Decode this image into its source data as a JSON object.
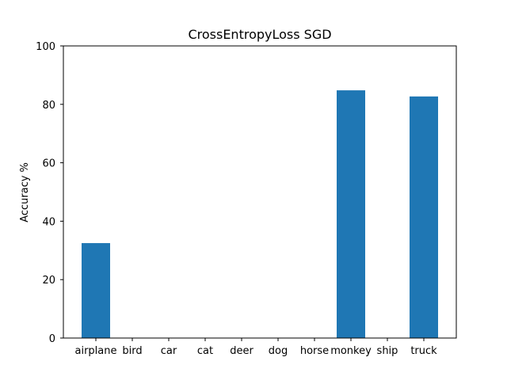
{
  "chart_data": {
    "type": "bar",
    "title": "CrossEntropyLoss SGD",
    "xlabel": "",
    "ylabel": "Accuracy %",
    "categories": [
      "airplane",
      "bird",
      "car",
      "cat",
      "deer",
      "dog",
      "horse",
      "monkey",
      "ship",
      "truck"
    ],
    "values": [
      32.5,
      0,
      0,
      0,
      0,
      0,
      0,
      84.8,
      0,
      82.7
    ],
    "ylim": [
      0,
      100
    ],
    "yticks": [
      "0",
      "20",
      "40",
      "60",
      "80",
      "100"
    ],
    "ytick_values": [
      0,
      20,
      40,
      60,
      80,
      100
    ],
    "grid": false,
    "bar_color": "#1f77b4"
  }
}
